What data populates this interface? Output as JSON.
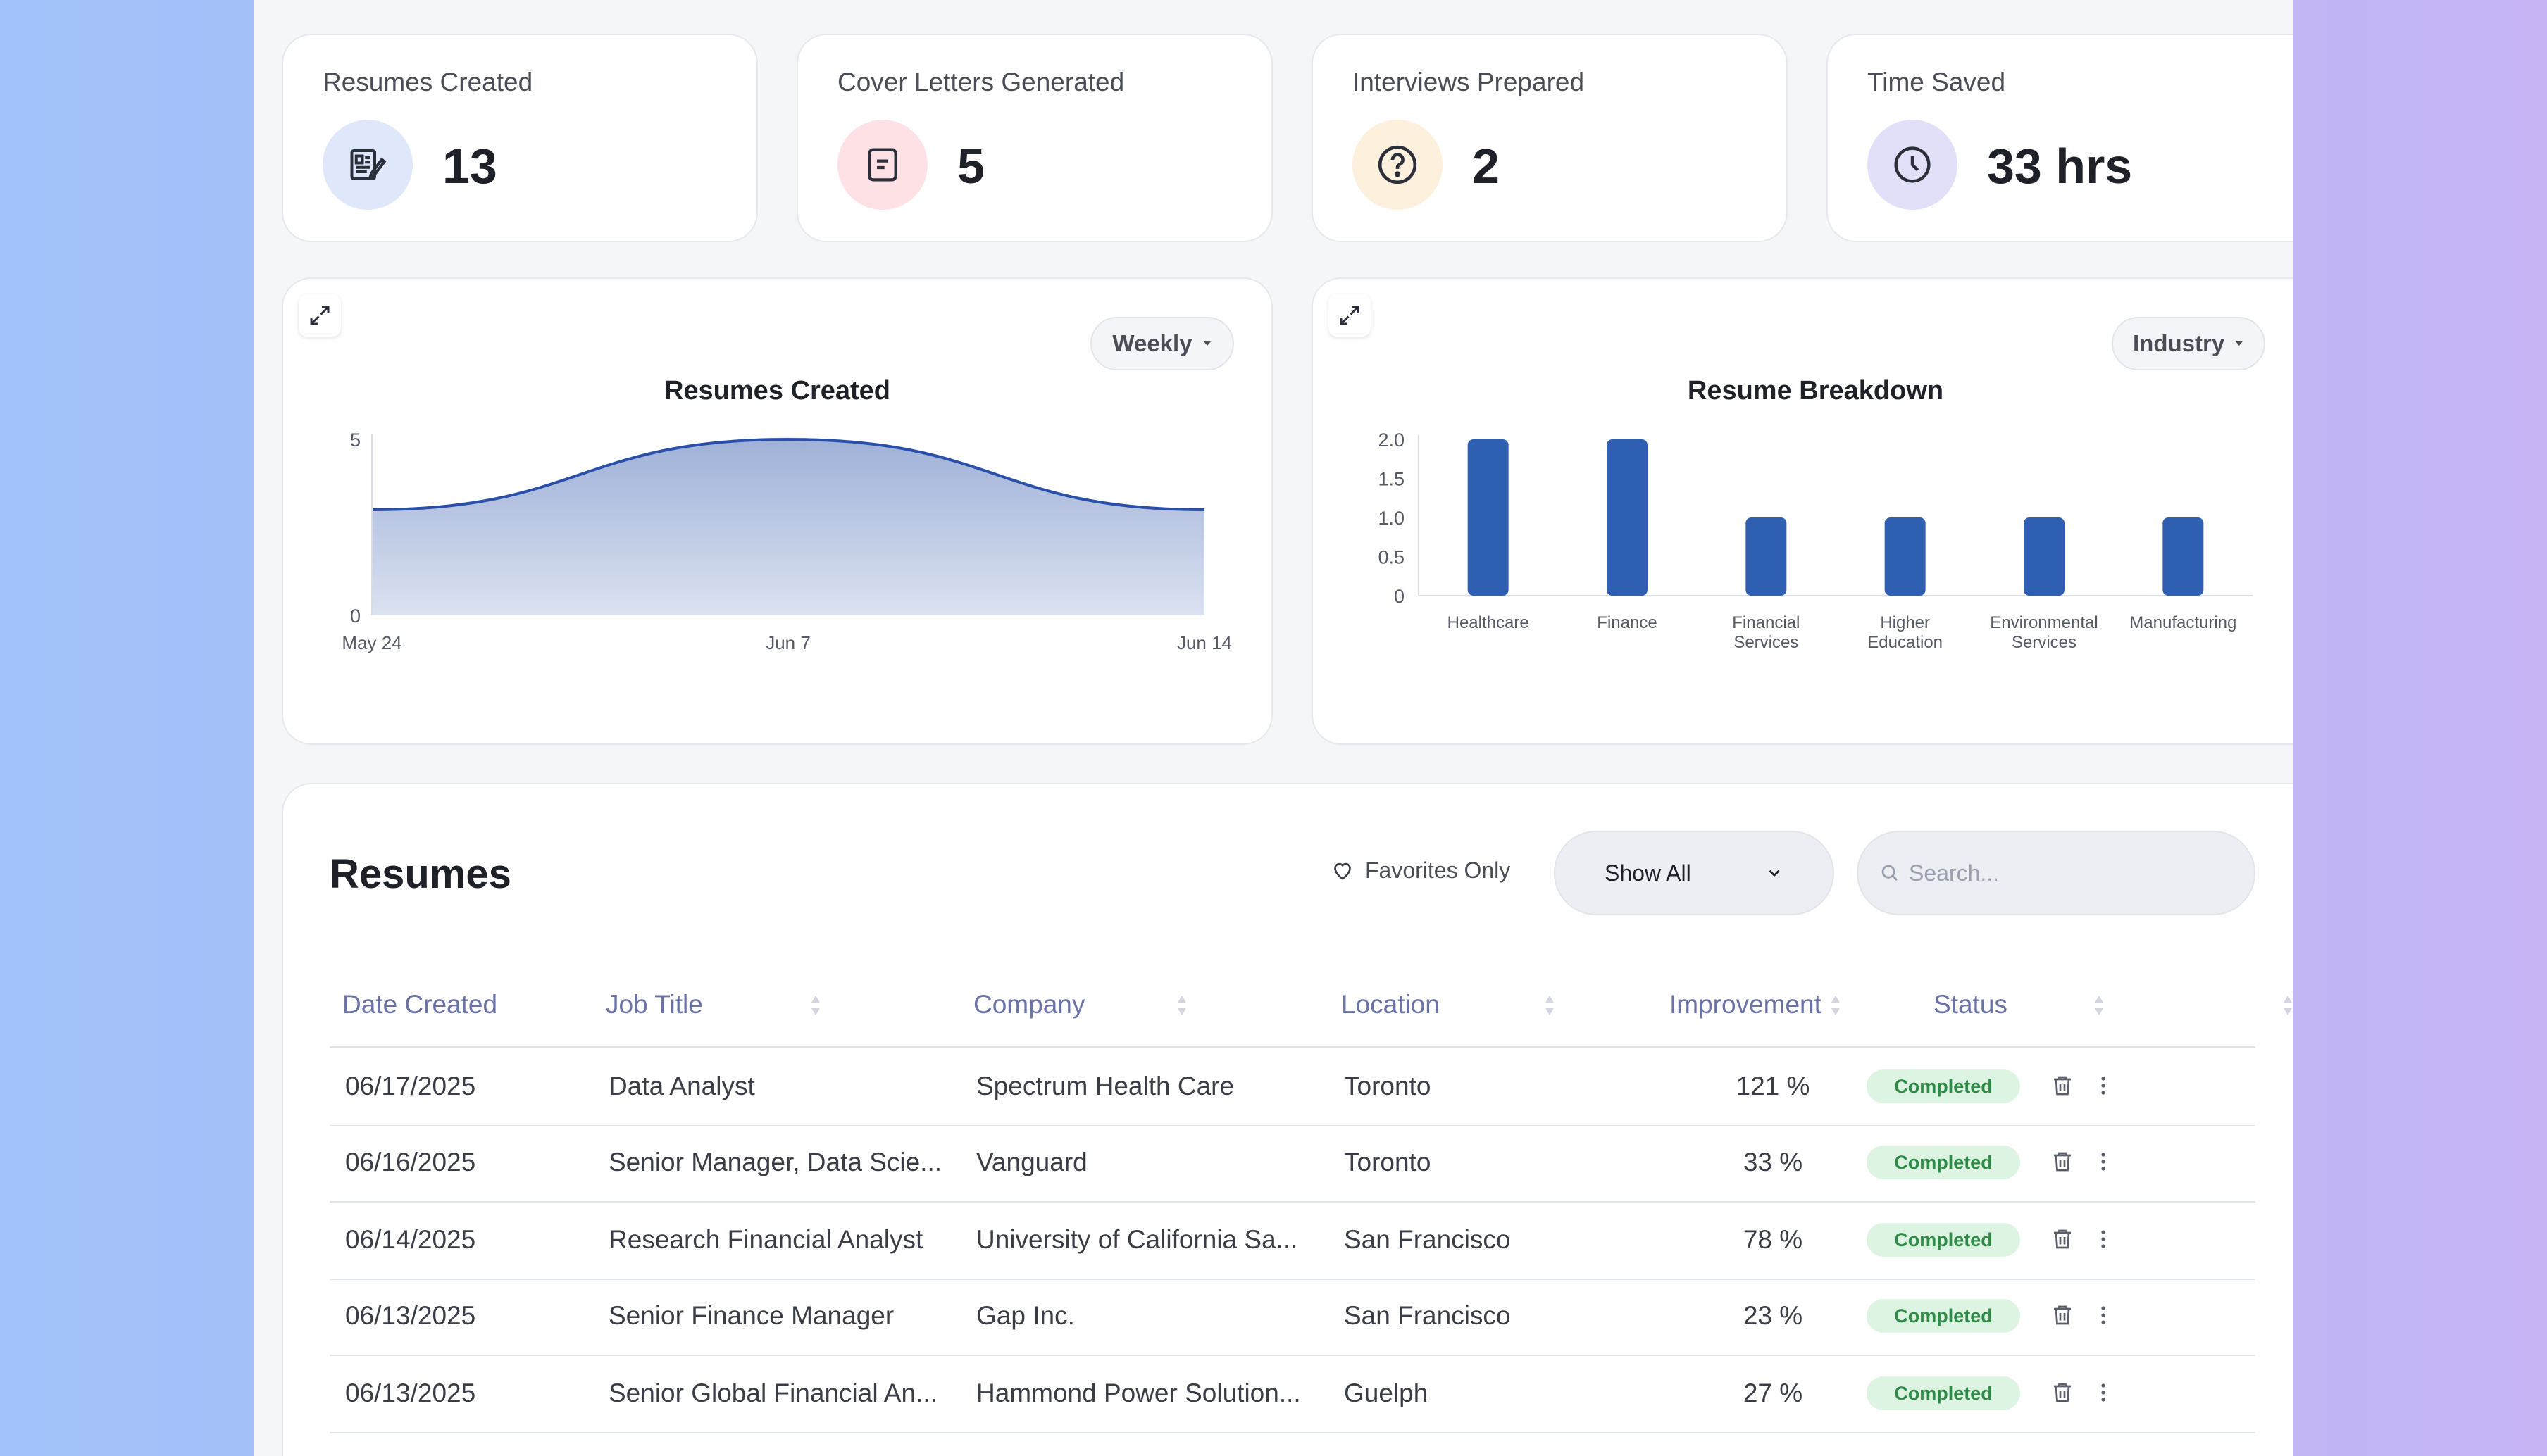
{
  "stats": [
    {
      "title": "Resumes Created",
      "value": "13",
      "icon": "resume-icon",
      "icon_bg": "#dfe7fb"
    },
    {
      "title": "Cover Letters Generated",
      "value": "5",
      "icon": "document-icon",
      "icon_bg": "#fde1e5"
    },
    {
      "title": "Interviews Prepared",
      "value": "2",
      "icon": "question-icon",
      "icon_bg": "#fdf0dd"
    },
    {
      "title": "Time Saved",
      "value": "33 hrs",
      "icon": "clock-icon",
      "icon_bg": "#e2e0f8"
    }
  ],
  "area_chart": {
    "dropdown": "Weekly",
    "title": "Resumes Created"
  },
  "bar_chart": {
    "dropdown": "Industry",
    "title": "Resume Breakdown"
  },
  "chart_data": [
    {
      "type": "area",
      "title": "Resumes Created",
      "x": [
        "May 24",
        "Jun 7",
        "Jun 14"
      ],
      "x_ticks": [
        "May 24",
        "Jun 7",
        "Jun 14"
      ],
      "y_ticks": [
        "0",
        "5"
      ],
      "ylim": [
        0,
        5
      ],
      "series": [
        {
          "values": [
            3,
            5,
            3
          ]
        }
      ],
      "grid": false,
      "color": "#2a4fa8"
    },
    {
      "type": "bar",
      "title": "Resume Breakdown",
      "categories": [
        [
          "Healthcare"
        ],
        [
          "Finance"
        ],
        [
          "Financial",
          "Services"
        ],
        [
          "Higher",
          "Education"
        ],
        [
          "Environmental",
          "Services"
        ],
        [
          "Manufacturing"
        ]
      ],
      "values": [
        2,
        2,
        1,
        1,
        1,
        1
      ],
      "y_ticks": [
        "0",
        "0.5",
        "1.0",
        "1.5",
        "2.0"
      ],
      "ylim": [
        0,
        2
      ],
      "grid": false,
      "color": "#2f5fb0"
    }
  ],
  "table": {
    "title": "Resumes",
    "favorites_label": "Favorites Only",
    "filter_value": "Show All",
    "search_placeholder": "Search...",
    "columns": [
      "Date Created",
      "Job Title",
      "Company",
      "Location",
      "Improvement",
      "Status"
    ],
    "rows": [
      {
        "date": "06/17/2025",
        "job": "Data Analyst",
        "company": "Spectrum Health Care",
        "location": "Toronto",
        "improvement": "121 %",
        "status": "Completed"
      },
      {
        "date": "06/16/2025",
        "job": "Senior Manager, Data Scie...",
        "company": "Vanguard",
        "location": "Toronto",
        "improvement": "33 %",
        "status": "Completed"
      },
      {
        "date": "06/14/2025",
        "job": "Research Financial Analyst",
        "company": "University of California Sa...",
        "location": "San Francisco",
        "improvement": "78 %",
        "status": "Completed"
      },
      {
        "date": "06/13/2025",
        "job": "Senior Finance Manager",
        "company": "Gap Inc.",
        "location": "San Francisco",
        "improvement": "23 %",
        "status": "Completed"
      },
      {
        "date": "06/13/2025",
        "job": "Senior Global Financial An...",
        "company": "Hammond Power Solution...",
        "location": "Guelph",
        "improvement": "27 %",
        "status": "Completed"
      }
    ]
  }
}
